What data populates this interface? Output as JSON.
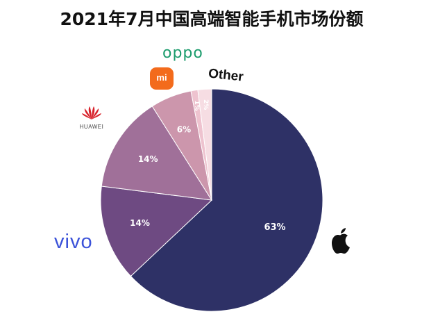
{
  "title": "2021年7月中国高端智能手机市场份额",
  "brands": {
    "oppo": "oppo",
    "other": "Other",
    "vivo": "vivo",
    "huawei": "HUAWEI",
    "xiaomi": "mi",
    "apple_icon": "apple-logo-icon"
  },
  "chart_data": {
    "type": "pie",
    "title": "2021年7月中国高端智能手机市场份额",
    "slices": [
      {
        "label": "Apple",
        "value": 63,
        "display": "63%",
        "color": "#2e3166"
      },
      {
        "label": "vivo",
        "value": 14,
        "display": "14%",
        "color": "#6e4a82"
      },
      {
        "label": "HUAWEI",
        "value": 14,
        "display": "14%",
        "color": "#a07099"
      },
      {
        "label": "mi",
        "value": 6,
        "display": "6%",
        "color": "#cc96ac"
      },
      {
        "label": "oppo",
        "value": 1,
        "display": "1%",
        "color": "#eec3cf"
      },
      {
        "label": "Other",
        "value": 2,
        "display": "2%",
        "color": "#f6dde3"
      }
    ],
    "start_angle": "12 o'clock",
    "direction": "clockwise",
    "legend": "brand logos placed around the pie"
  }
}
